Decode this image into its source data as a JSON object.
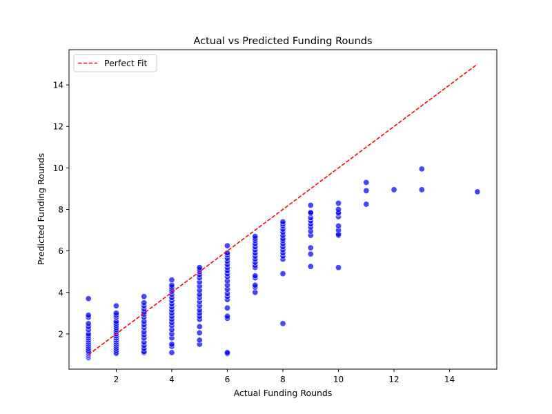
{
  "chart_data": {
    "type": "scatter",
    "title": "Actual vs Predicted Funding Rounds",
    "xlabel": "Actual Funding Rounds",
    "ylabel": "Predicted Funding Rounds",
    "xlim": [
      0.3,
      15.7
    ],
    "ylim": [
      0.3,
      15.7
    ],
    "xticks": [
      "2",
      "4",
      "6",
      "8",
      "10",
      "12",
      "14"
    ],
    "yticks": [
      "2",
      "4",
      "6",
      "8",
      "10",
      "12",
      "14"
    ],
    "grid": false,
    "legend": {
      "placement": "top-left",
      "entries": [
        "Perfect Fit"
      ]
    },
    "colors": {
      "points": "#0000ff",
      "points_edge": "#ffffff",
      "fit_line": "#ff0000"
    },
    "perfect_fit": {
      "x": [
        1,
        15
      ],
      "y": [
        1,
        15
      ],
      "style": "dashed"
    },
    "series": [
      {
        "points": [
          [
            1,
            0.85
          ],
          [
            1,
            0.9
          ],
          [
            1,
            0.95
          ],
          [
            1,
            1.0
          ],
          [
            1,
            1.05
          ],
          [
            1,
            1.1
          ],
          [
            1,
            1.15
          ],
          [
            1,
            1.2
          ],
          [
            1,
            1.3
          ],
          [
            1,
            1.4
          ],
          [
            1,
            1.5
          ],
          [
            1,
            1.6
          ],
          [
            1,
            1.7
          ],
          [
            1,
            1.8
          ],
          [
            1,
            1.9
          ],
          [
            1,
            2.0
          ],
          [
            1,
            2.2
          ],
          [
            1,
            2.35
          ],
          [
            1,
            2.5
          ],
          [
            1,
            2.8
          ],
          [
            1,
            2.9
          ],
          [
            1,
            3.7
          ],
          [
            2,
            1.05
          ],
          [
            2,
            1.1
          ],
          [
            2,
            1.2
          ],
          [
            2,
            1.3
          ],
          [
            2,
            1.4
          ],
          [
            2,
            1.5
          ],
          [
            2,
            1.6
          ],
          [
            2,
            1.7
          ],
          [
            2,
            1.8
          ],
          [
            2,
            1.9
          ],
          [
            2,
            2.0
          ],
          [
            2,
            2.1
          ],
          [
            2,
            2.2
          ],
          [
            2,
            2.3
          ],
          [
            2,
            2.4
          ],
          [
            2,
            2.5
          ],
          [
            2,
            2.6
          ],
          [
            2,
            2.8
          ],
          [
            2,
            2.9
          ],
          [
            2,
            3.0
          ],
          [
            2,
            3.35
          ],
          [
            3,
            1.1
          ],
          [
            3,
            1.15
          ],
          [
            3,
            1.3
          ],
          [
            3,
            1.45
          ],
          [
            3,
            1.6
          ],
          [
            3,
            1.8
          ],
          [
            3,
            1.95
          ],
          [
            3,
            2.1
          ],
          [
            3,
            2.3
          ],
          [
            3,
            2.45
          ],
          [
            3,
            2.6
          ],
          [
            3,
            2.8
          ],
          [
            3,
            2.95
          ],
          [
            3,
            3.05
          ],
          [
            3,
            3.2
          ],
          [
            3,
            3.35
          ],
          [
            3,
            3.5
          ],
          [
            3,
            3.8
          ],
          [
            4,
            1.1
          ],
          [
            4,
            1.4
          ],
          [
            4,
            1.5
          ],
          [
            4,
            1.8
          ],
          [
            4,
            2.0
          ],
          [
            4,
            2.2
          ],
          [
            4,
            2.4
          ],
          [
            4,
            2.55
          ],
          [
            4,
            2.7
          ],
          [
            4,
            2.85
          ],
          [
            4,
            3.0
          ],
          [
            4,
            3.15
          ],
          [
            4,
            3.3
          ],
          [
            4,
            3.45
          ],
          [
            4,
            3.6
          ],
          [
            4,
            3.75
          ],
          [
            4,
            3.9
          ],
          [
            4,
            4.05
          ],
          [
            4,
            4.15
          ],
          [
            4,
            4.25
          ],
          [
            4,
            4.35
          ],
          [
            4,
            4.6
          ],
          [
            5,
            1.5
          ],
          [
            5,
            1.7
          ],
          [
            5,
            2.05
          ],
          [
            5,
            2.35
          ],
          [
            5,
            2.7
          ],
          [
            5,
            2.85
          ],
          [
            5,
            3.0
          ],
          [
            5,
            3.15
          ],
          [
            5,
            3.35
          ],
          [
            5,
            3.55
          ],
          [
            5,
            3.75
          ],
          [
            5,
            3.9
          ],
          [
            5,
            4.1
          ],
          [
            5,
            4.3
          ],
          [
            5,
            4.5
          ],
          [
            5,
            4.7
          ],
          [
            5,
            4.85
          ],
          [
            5,
            5.0
          ],
          [
            5,
            5.1
          ],
          [
            5,
            5.2
          ],
          [
            6,
            1.05
          ],
          [
            6,
            1.1
          ],
          [
            6,
            2.75
          ],
          [
            6,
            2.85
          ],
          [
            6,
            3.25
          ],
          [
            6,
            3.65
          ],
          [
            6,
            3.8
          ],
          [
            6,
            3.95
          ],
          [
            6,
            4.15
          ],
          [
            6,
            4.35
          ],
          [
            6,
            4.55
          ],
          [
            6,
            4.75
          ],
          [
            6,
            4.9
          ],
          [
            6,
            5.05
          ],
          [
            6,
            5.2
          ],
          [
            6,
            5.35
          ],
          [
            6,
            5.5
          ],
          [
            6,
            5.65
          ],
          [
            6,
            5.8
          ],
          [
            6,
            5.9
          ],
          [
            6,
            6.25
          ],
          [
            7,
            4.0
          ],
          [
            7,
            4.25
          ],
          [
            7,
            4.35
          ],
          [
            7,
            4.7
          ],
          [
            7,
            4.8
          ],
          [
            7,
            5.2
          ],
          [
            7,
            5.3
          ],
          [
            7,
            5.45
          ],
          [
            7,
            5.6
          ],
          [
            7,
            5.75
          ],
          [
            7,
            5.9
          ],
          [
            7,
            6.05
          ],
          [
            7,
            6.2
          ],
          [
            7,
            6.35
          ],
          [
            7,
            6.5
          ],
          [
            7,
            6.6
          ],
          [
            7,
            6.7
          ],
          [
            8,
            2.5
          ],
          [
            8,
            4.9
          ],
          [
            8,
            5.6
          ],
          [
            8,
            5.75
          ],
          [
            8,
            5.9
          ],
          [
            8,
            6.05
          ],
          [
            8,
            6.2
          ],
          [
            8,
            6.35
          ],
          [
            8,
            6.5
          ],
          [
            8,
            6.6
          ],
          [
            8,
            6.75
          ],
          [
            8,
            6.9
          ],
          [
            8,
            7.05
          ],
          [
            8,
            7.2
          ],
          [
            8,
            7.3
          ],
          [
            8,
            7.4
          ],
          [
            9,
            5.25
          ],
          [
            9,
            5.85
          ],
          [
            9,
            6.15
          ],
          [
            9,
            6.75
          ],
          [
            9,
            6.95
          ],
          [
            9,
            7.15
          ],
          [
            9,
            7.3
          ],
          [
            9,
            7.45
          ],
          [
            9,
            7.6
          ],
          [
            9,
            7.8
          ],
          [
            9,
            7.85
          ],
          [
            9,
            8.2
          ],
          [
            10,
            5.2
          ],
          [
            10,
            6.75
          ],
          [
            10,
            6.8
          ],
          [
            10,
            7.0
          ],
          [
            10,
            7.2
          ],
          [
            10,
            7.65
          ],
          [
            10,
            7.8
          ],
          [
            10,
            7.85
          ],
          [
            10,
            8.0
          ],
          [
            10,
            8.3
          ],
          [
            11,
            8.25
          ],
          [
            11,
            8.9
          ],
          [
            11,
            9.3
          ],
          [
            12,
            8.95
          ],
          [
            13,
            8.95
          ],
          [
            13,
            9.95
          ],
          [
            15,
            8.85
          ]
        ]
      }
    ]
  }
}
